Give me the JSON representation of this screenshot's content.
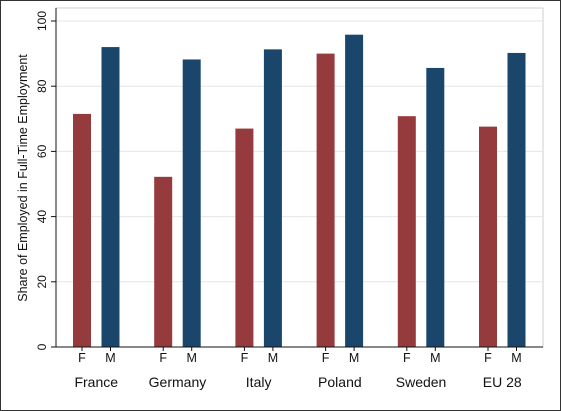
{
  "chart_data": {
    "type": "bar",
    "ylabel": "Share of Employed in Full-Time Employment",
    "ylim": [
      0,
      100
    ],
    "yticks": [
      0,
      20,
      40,
      60,
      80,
      100
    ],
    "grid": true,
    "categories": [
      "France",
      "Germany",
      "Italy",
      "Poland",
      "Sweden",
      "EU 28"
    ],
    "series": [
      {
        "name": "F",
        "color": "#953a3d",
        "values": [
          71.5,
          52.2,
          67.0,
          90.0,
          70.8,
          67.6
        ]
      },
      {
        "name": "M",
        "color": "#1b466c",
        "values": [
          92.0,
          88.2,
          91.3,
          95.8,
          85.6,
          90.2
        ]
      }
    ]
  }
}
